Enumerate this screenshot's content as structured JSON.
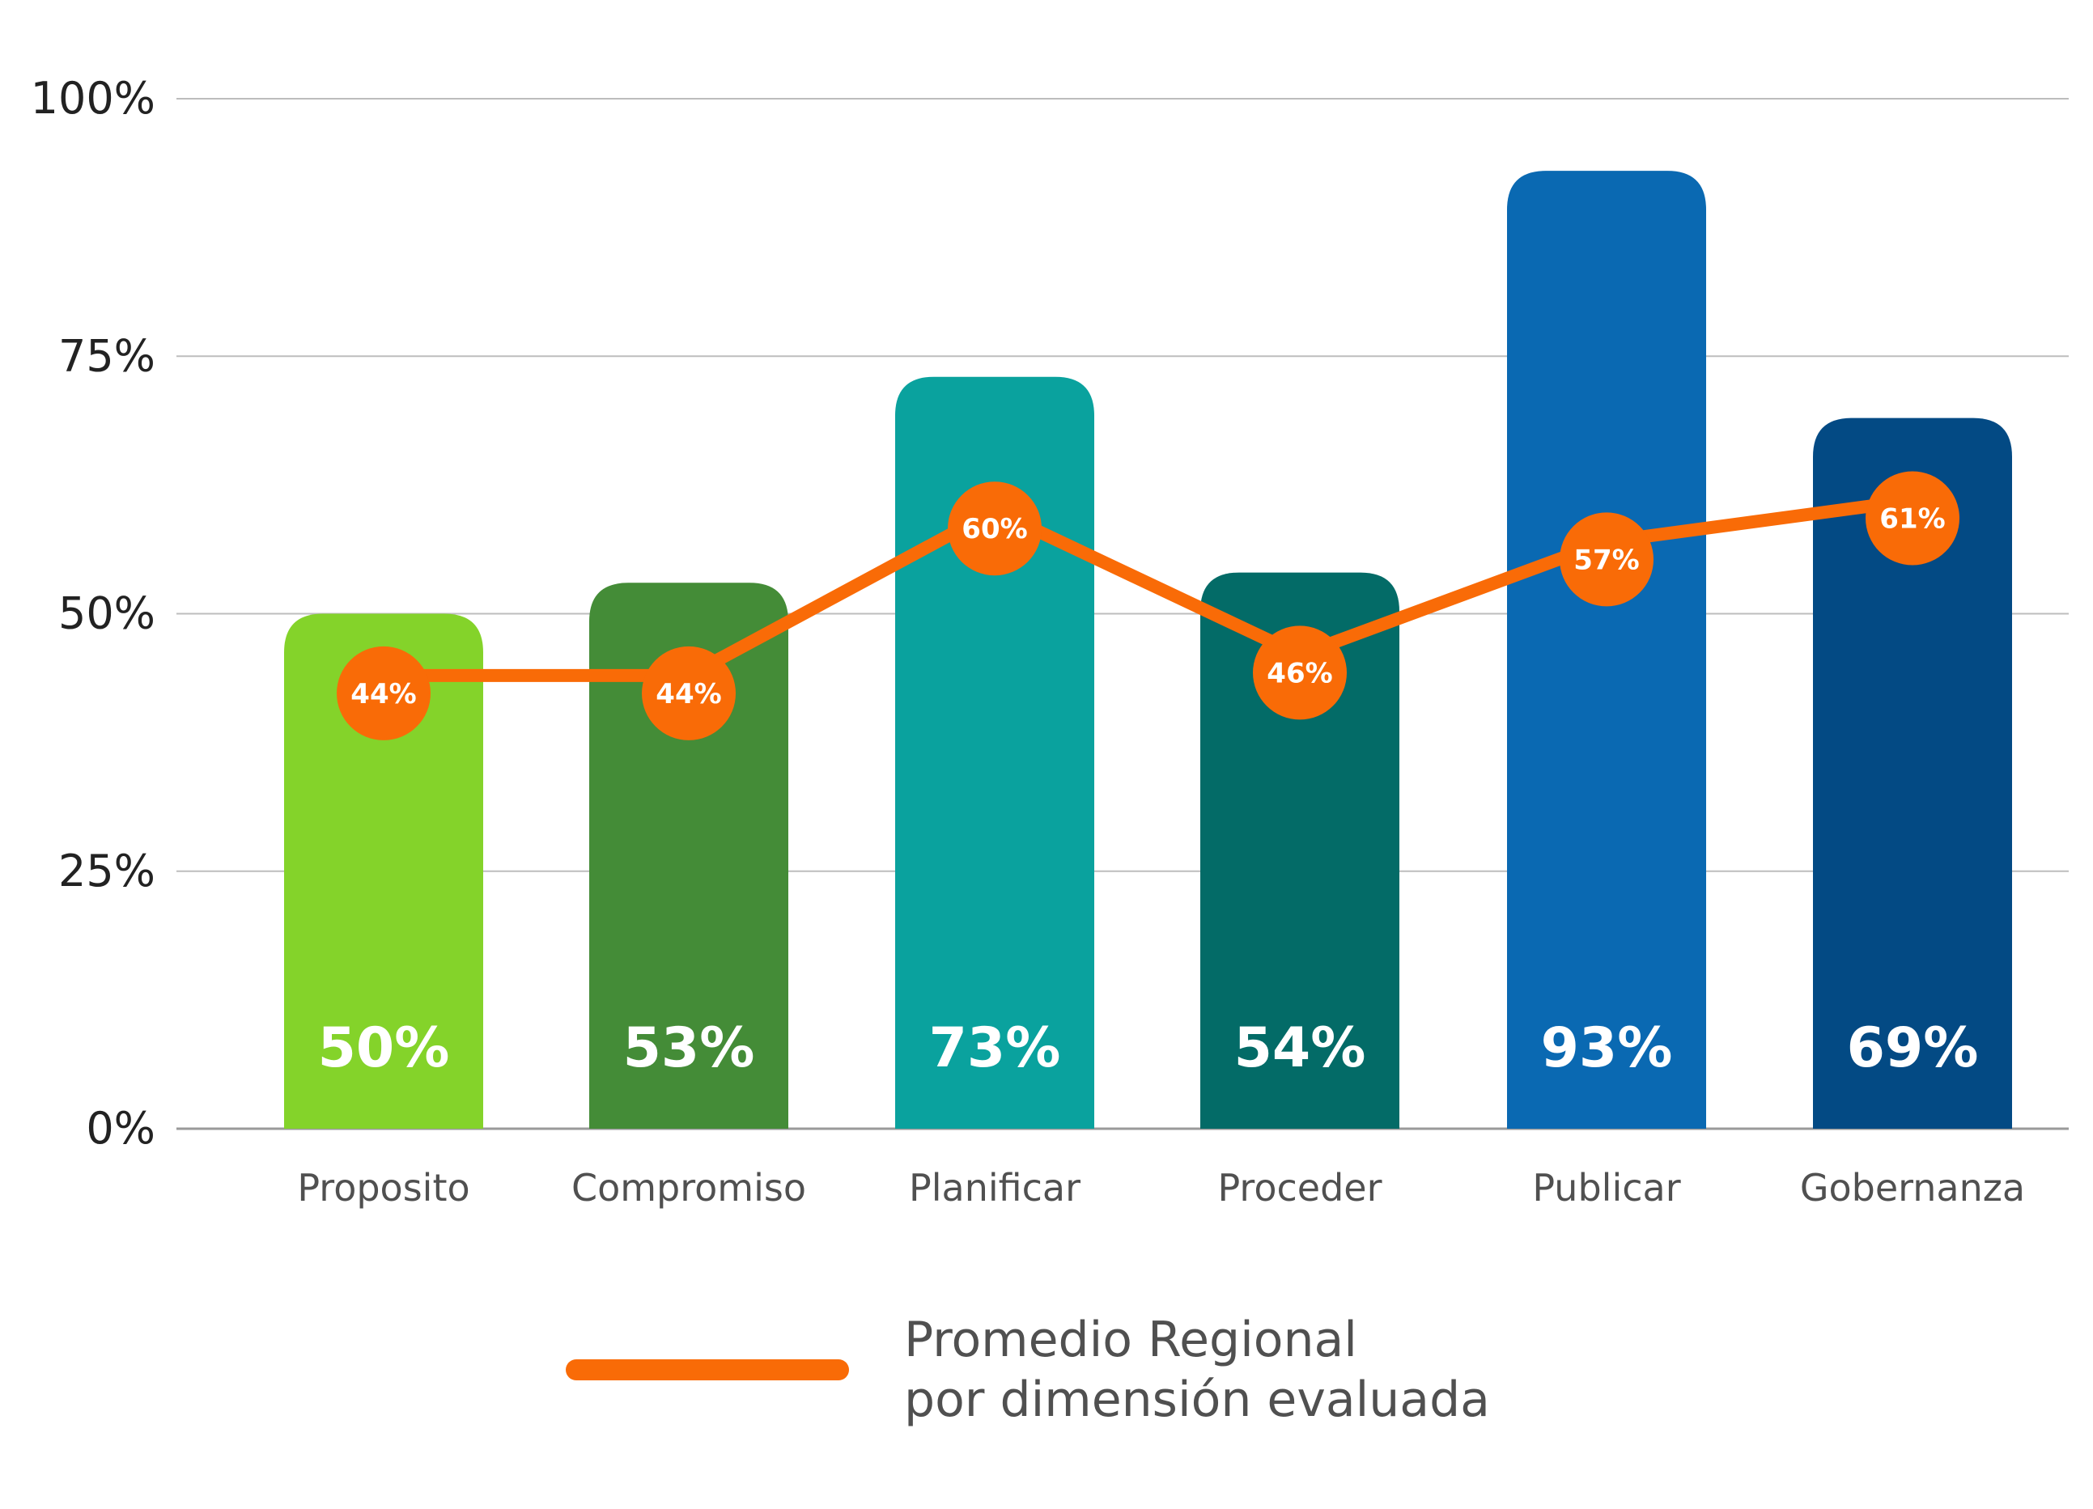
{
  "chart_data": {
    "type": "bar",
    "title": "",
    "xlabel": "",
    "ylabel": "",
    "ylim": [
      0,
      100
    ],
    "yticks": [
      "0%",
      "25%",
      "50%",
      "75%",
      "100%"
    ],
    "grid": true,
    "categories": [
      "Proposito",
      "Compromiso",
      "Planificar",
      "Proceder",
      "Publicar",
      "Gobernanza"
    ],
    "series": [
      {
        "type": "bar",
        "values": [
          50,
          53,
          73,
          54,
          93,
          69
        ],
        "labels": [
          "50%",
          "53%",
          "73%",
          "54%",
          "93%",
          "69%"
        ],
        "colors": [
          "#84d32a",
          "#448c37",
          "#0aa29e",
          "#036b67",
          "#0a69b2",
          "#034a84"
        ]
      },
      {
        "type": "line",
        "name": "Promedio Regional por dimensión evaluada",
        "values": [
          44,
          44,
          60,
          46,
          57,
          61
        ],
        "labels": [
          "44%",
          "44%",
          "60%",
          "46%",
          "57%",
          "61%"
        ],
        "color": "#f96b07"
      }
    ],
    "legend": {
      "placement": "bottom-center",
      "lines": [
        "Promedio Regional",
        "por dimensión evaluada"
      ]
    }
  }
}
